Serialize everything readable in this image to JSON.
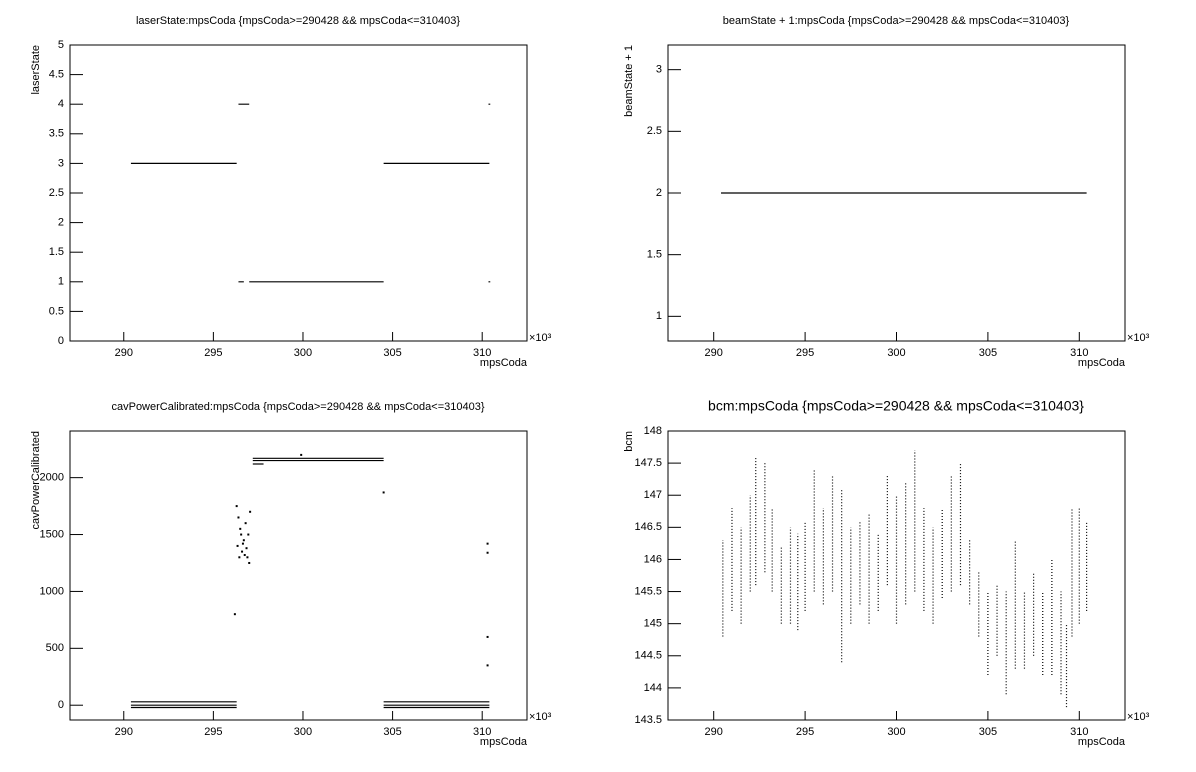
{
  "chart_data": [
    {
      "type": "line",
      "title": "laserState:mpsCoda {mpsCoda>=290428 && mpsCoda<=310403}",
      "xlabel": "mpsCoda",
      "ylabel": "laserState",
      "x_multiplier_label": "×10³",
      "xlim": [
        287,
        312.5
      ],
      "xticks": [
        290,
        295,
        300,
        305,
        310
      ],
      "ylim": [
        0,
        5
      ],
      "yticks": [
        0,
        0.5,
        1,
        1.5,
        2,
        2.5,
        3,
        3.5,
        4,
        4.5,
        5
      ],
      "series": [
        {
          "color": "#000000",
          "x": [
            290.4,
            296.3,
            null,
            304.5,
            310.4
          ],
          "values": [
            3,
            3,
            null,
            3,
            3
          ]
        },
        {
          "color": "#000000",
          "x": [
            296.4,
            297.0,
            null,
            310.35,
            310.45
          ],
          "values": [
            4,
            4,
            null,
            4,
            4
          ]
        },
        {
          "color": "#000000",
          "x": [
            296.4,
            296.7,
            null,
            297.0,
            304.5,
            null,
            310.35,
            310.45
          ],
          "values": [
            1,
            1,
            null,
            1,
            1,
            null,
            1,
            1
          ]
        }
      ]
    },
    {
      "type": "line",
      "title": "beamState + 1:mpsCoda {mpsCoda>=290428 && mpsCoda<=310403}",
      "xlabel": "mpsCoda",
      "ylabel": "beamState + 1",
      "x_multiplier_label": "×10³",
      "xlim": [
        287.5,
        312.5
      ],
      "xticks": [
        290,
        295,
        300,
        305,
        310
      ],
      "ylim": [
        0.8,
        3.2
      ],
      "yticks": [
        1,
        1.5,
        2,
        2.5,
        3
      ],
      "series": [
        {
          "color": "#000000",
          "x": [
            290.4,
            310.4
          ],
          "values": [
            2,
            2
          ]
        }
      ]
    },
    {
      "type": "scatter",
      "title": "cavPowerCalibrated:mpsCoda {mpsCoda>=290428 && mpsCoda<=310403}",
      "xlabel": "mpsCoda",
      "ylabel": "cavPowerCalibrated",
      "x_multiplier_label": "×10³",
      "xlim": [
        287,
        312.5
      ],
      "xticks": [
        290,
        295,
        300,
        305,
        310
      ],
      "ylim": [
        -130,
        2410
      ],
      "yticks": [
        0,
        500,
        1000,
        1500,
        2000
      ],
      "series": [
        {
          "color": "#000000",
          "connect": true,
          "x": [
            290.4,
            296.3,
            null,
            304.5,
            310.4
          ],
          "values": [
            30,
            30,
            null,
            30,
            30
          ]
        },
        {
          "color": "#000000",
          "connect": true,
          "x": [
            290.4,
            296.3,
            null,
            304.5,
            310.4
          ],
          "values": [
            0,
            0,
            null,
            0,
            0
          ]
        },
        {
          "color": "#000000",
          "connect": true,
          "x": [
            290.4,
            296.3,
            null,
            304.5,
            310.4
          ],
          "values": [
            -20,
            -20,
            null,
            -20,
            -20
          ]
        },
        {
          "color": "#000000",
          "connect": true,
          "x": [
            297.2,
            304.5
          ],
          "values": [
            2170,
            2170
          ]
        },
        {
          "color": "#000000",
          "connect": true,
          "x": [
            297.2,
            304.5
          ],
          "values": [
            2150,
            2150
          ]
        },
        {
          "color": "#000000",
          "connect": true,
          "x": [
            297.2,
            297.8
          ],
          "values": [
            2120,
            2120
          ]
        },
        {
          "color": "#000000",
          "connect": false,
          "x": [
            296.2,
            296.3,
            296.35,
            296.4,
            296.45,
            296.5,
            296.55,
            296.6,
            296.65,
            296.7,
            296.75,
            296.8,
            296.85,
            296.9,
            296.95,
            297.0,
            297.05,
            299.9,
            304.5,
            310.3,
            310.3,
            310.3,
            310.3
          ],
          "values": [
            800,
            1750,
            1400,
            1650,
            1300,
            1550,
            1500,
            1350,
            1420,
            1450,
            1320,
            1600,
            1380,
            1300,
            1500,
            1250,
            1700,
            2200,
            1870,
            1420,
            1340,
            600,
            350
          ]
        }
      ]
    },
    {
      "type": "range",
      "title": "bcm:mpsCoda {mpsCoda>=290428 && mpsCoda<=310403}",
      "xlabel": "mpsCoda",
      "ylabel": "bcm",
      "x_multiplier_label": "×10³",
      "xlim": [
        287.5,
        312.5
      ],
      "xticks": [
        290,
        295,
        300,
        305,
        310
      ],
      "ylim": [
        143.5,
        148
      ],
      "yticks": [
        143.5,
        144,
        144.5,
        145,
        145.5,
        146,
        146.5,
        147,
        147.5,
        148
      ],
      "color": "#000000",
      "x": [
        290.5,
        291,
        291.5,
        292,
        292.3,
        292.8,
        293.2,
        293.7,
        294.2,
        294.6,
        295,
        295.5,
        296,
        296.5,
        297,
        297.5,
        298,
        298.5,
        299,
        299.5,
        300,
        300.5,
        301,
        301.5,
        302,
        302.5,
        303,
        303.5,
        304,
        304.5,
        305,
        305.5,
        306,
        306.5,
        307,
        307.5,
        308,
        308.5,
        309,
        309.3,
        309.6,
        310,
        310.4
      ],
      "low": [
        144.8,
        145.2,
        145,
        145.5,
        145.6,
        145.8,
        145.5,
        145,
        145,
        144.9,
        145.2,
        145.5,
        145.3,
        145.5,
        144.4,
        145,
        145.3,
        145,
        145.2,
        145.6,
        145,
        145.3,
        145.5,
        145.2,
        145,
        145.4,
        145.5,
        145.6,
        145.3,
        144.8,
        144.2,
        144.5,
        143.9,
        144.3,
        144.3,
        144.5,
        144.2,
        144.2,
        143.9,
        143.7,
        144.8,
        145,
        145.2
      ],
      "high": [
        146.3,
        146.8,
        146.5,
        147,
        147.6,
        147.5,
        146.8,
        146.2,
        146.5,
        146.4,
        146.6,
        147.4,
        146.8,
        147.3,
        147.1,
        146.5,
        146.6,
        146.7,
        146.4,
        147.3,
        147,
        147.2,
        147.7,
        146.8,
        146.5,
        146.8,
        147.3,
        147.5,
        146.3,
        145.8,
        145.5,
        145.6,
        145.5,
        146.3,
        145.5,
        145.8,
        145.5,
        146,
        145.5,
        145,
        146.8,
        146.8,
        146.6
      ]
    }
  ]
}
